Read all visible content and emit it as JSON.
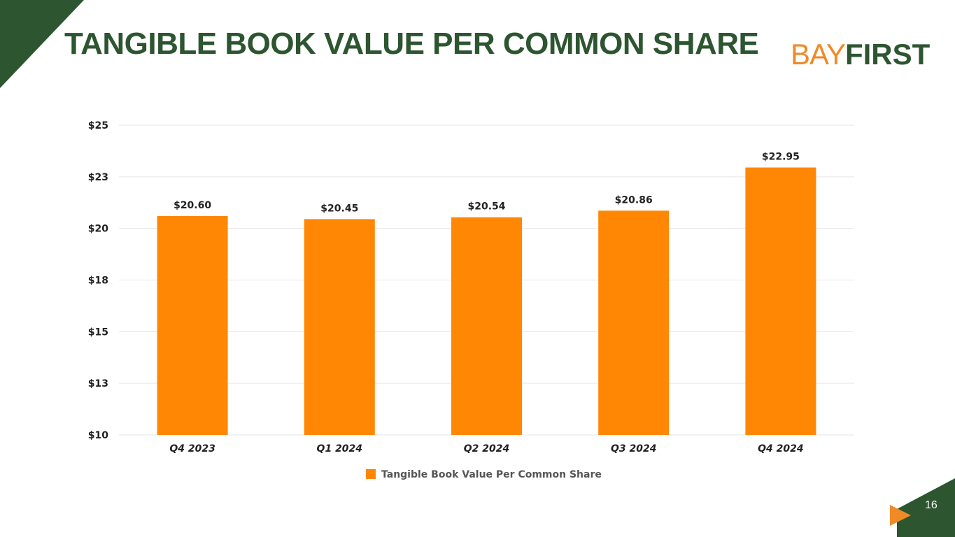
{
  "slide": {
    "title": "TANGIBLE BOOK VALUE PER COMMON SHARE",
    "logo_part1": "BAY",
    "logo_part2": "FIRST",
    "page_number": "16",
    "colors": {
      "title": "#2c5530",
      "corner_dark": "#2c5530",
      "accent_orange": "#f08a24",
      "bar": "#ff8704",
      "gridline": "#e6e6e6"
    }
  },
  "chart_data": {
    "type": "bar",
    "categories": [
      "Q4 2023",
      "Q1 2024",
      "Q2 2024",
      "Q3 2024",
      "Q4 2024"
    ],
    "series": [
      {
        "name": "Tangible Book Value Per Common Share",
        "values": [
          20.6,
          20.45,
          20.54,
          20.86,
          22.95
        ],
        "data_labels": [
          "$20.60",
          "$20.45",
          "$20.54",
          "$20.86",
          "$22.95"
        ]
      }
    ],
    "y_ticks": [
      {
        "value": 10,
        "label": "$10"
      },
      {
        "value": 12.5,
        "label": "$13"
      },
      {
        "value": 15,
        "label": "$15"
      },
      {
        "value": 17.5,
        "label": "$18"
      },
      {
        "value": 20,
        "label": "$20"
      },
      {
        "value": 22.5,
        "label": "$23"
      },
      {
        "value": 25,
        "label": "$25"
      }
    ],
    "ylim": [
      10,
      25
    ],
    "grid": true,
    "legend_position": "bottom"
  }
}
